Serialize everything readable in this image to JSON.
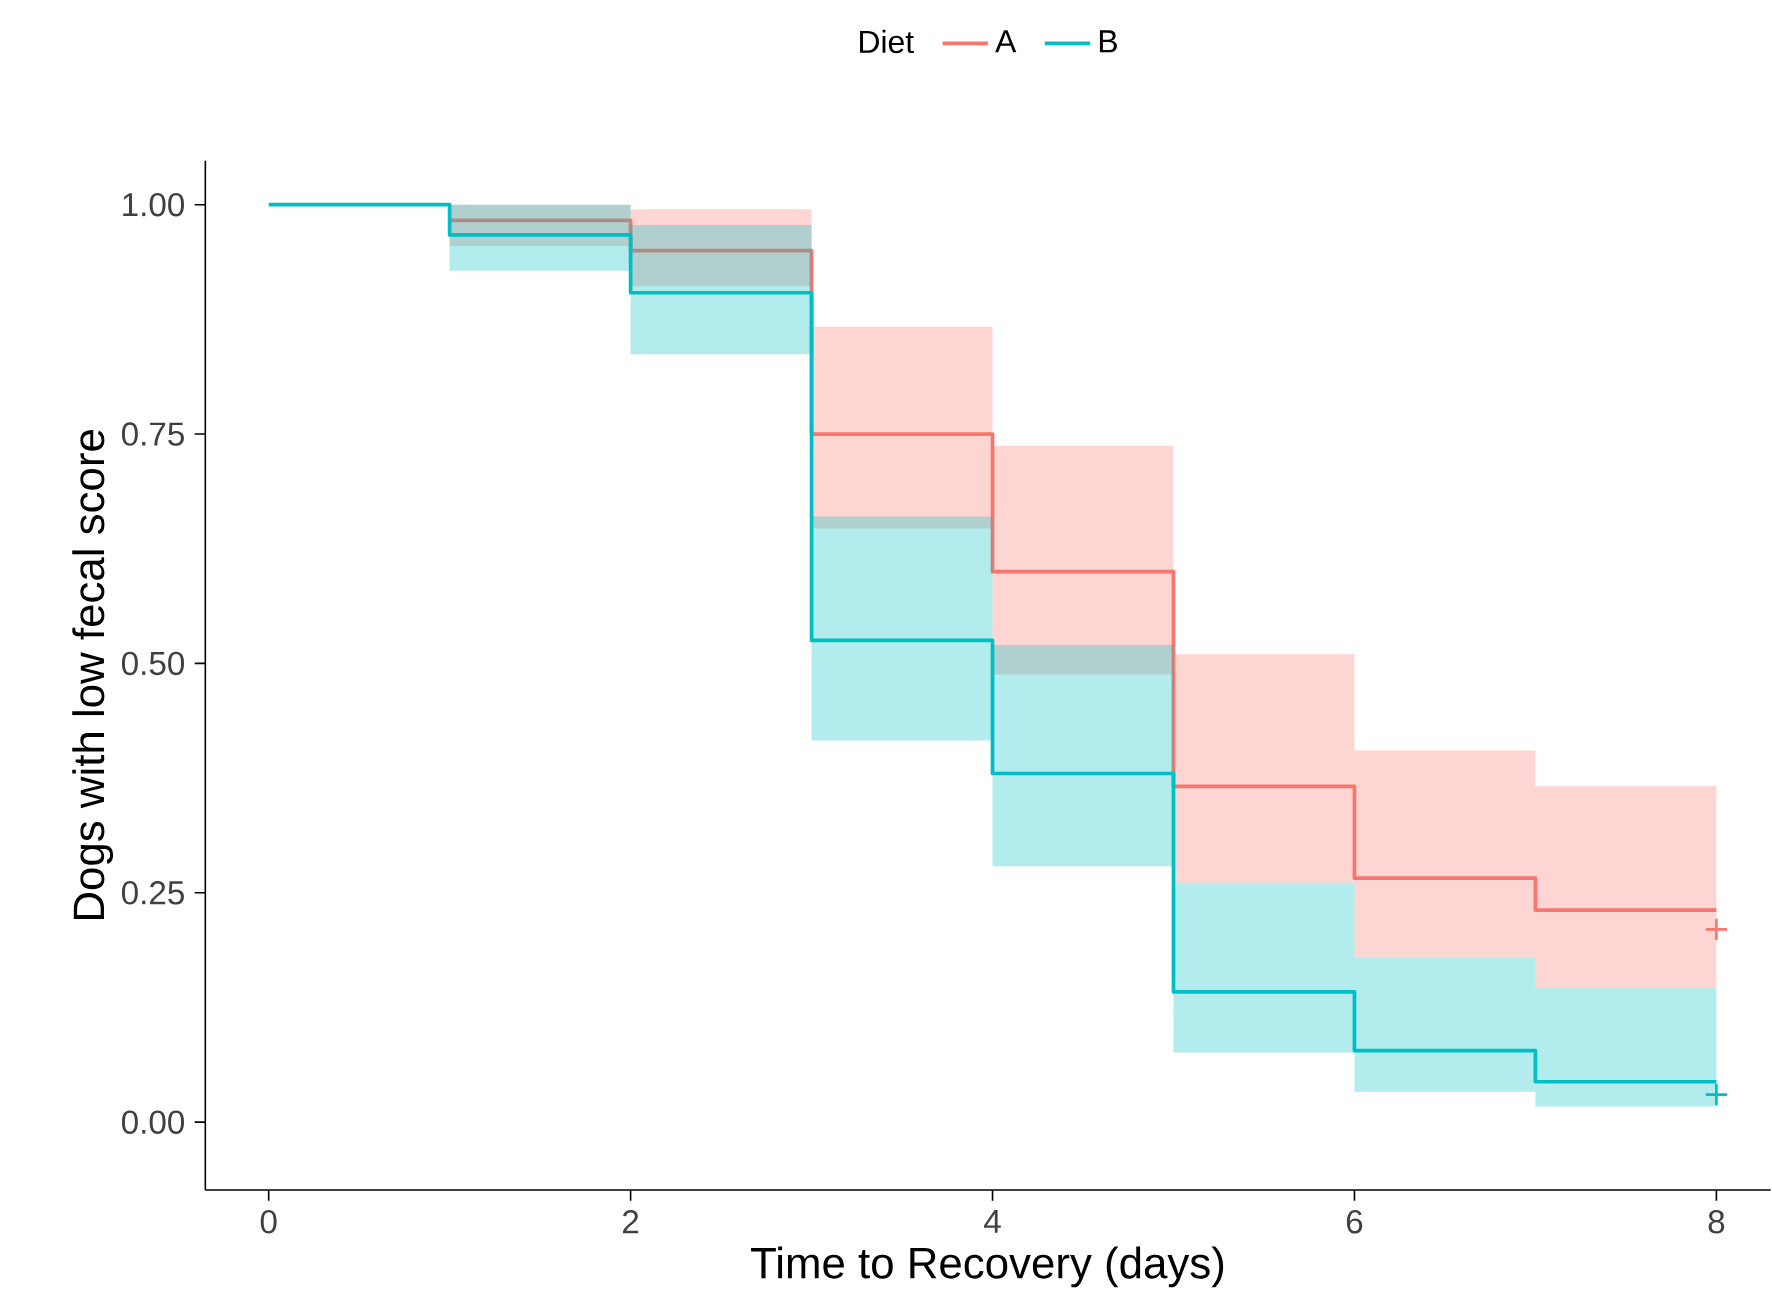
{
  "chart_data": {
    "type": "step",
    "xlabel": "Time to Recovery (days)",
    "ylabel": "Dogs with low fecal score",
    "legend_title": "Diet",
    "legend": "top",
    "grid": false,
    "xlim": [
      -0.35,
      8.3
    ],
    "ylim": [
      -0.074,
      1.048
    ],
    "xticks": [
      0,
      2,
      4,
      6,
      8
    ],
    "yticks": [
      {
        "value": 0,
        "label": "0.00"
      },
      {
        "value": 0.25,
        "label": "0.25"
      },
      {
        "value": 0.5,
        "label": "0.50"
      },
      {
        "value": 0.75,
        "label": "0.75"
      },
      {
        "value": 1,
        "label": "1.00"
      }
    ],
    "series": [
      {
        "name": "A",
        "color": "#f8766d",
        "x": [
          0,
          1,
          2,
          3,
          4,
          5,
          6,
          7,
          8
        ],
        "values": [
          null,
          0.983,
          0.95,
          0.75,
          0.6,
          0.366,
          0.266,
          0.231,
          0.231
        ],
        "lower": [
          1,
          0.955,
          0.911,
          0.647,
          0.488,
          0.261,
          0.179,
          0.146,
          0.146
        ],
        "upper": [
          1,
          1,
          0.995,
          0.867,
          0.737,
          0.51,
          0.405,
          0.366,
          0.366
        ]
      },
      {
        "name": "B",
        "color": "#00bfc4",
        "x": [
          0,
          1,
          2,
          3,
          4,
          5,
          6,
          7,
          8
        ],
        "values": [
          1,
          0.967,
          0.904,
          0.525,
          0.38,
          0.142,
          0.078,
          0.044,
          0.044
        ],
        "lower": [
          1,
          0.928,
          0.837,
          0.416,
          0.279,
          0.076,
          0.033,
          0.017,
          0.017
        ],
        "upper": [
          1,
          1,
          0.978,
          0.66,
          0.52,
          0.261,
          0.179,
          0.146,
          0.146
        ]
      },
      {
        "type": "scatter",
        "marker": "cross",
        "color": "#f8766d",
        "x": [
          8
        ],
        "values": [
          0.21
        ]
      },
      {
        "type": "scatter",
        "marker": "cross",
        "color": "#00bfc4",
        "x": [
          8
        ],
        "values": [
          0.03
        ]
      }
    ]
  }
}
